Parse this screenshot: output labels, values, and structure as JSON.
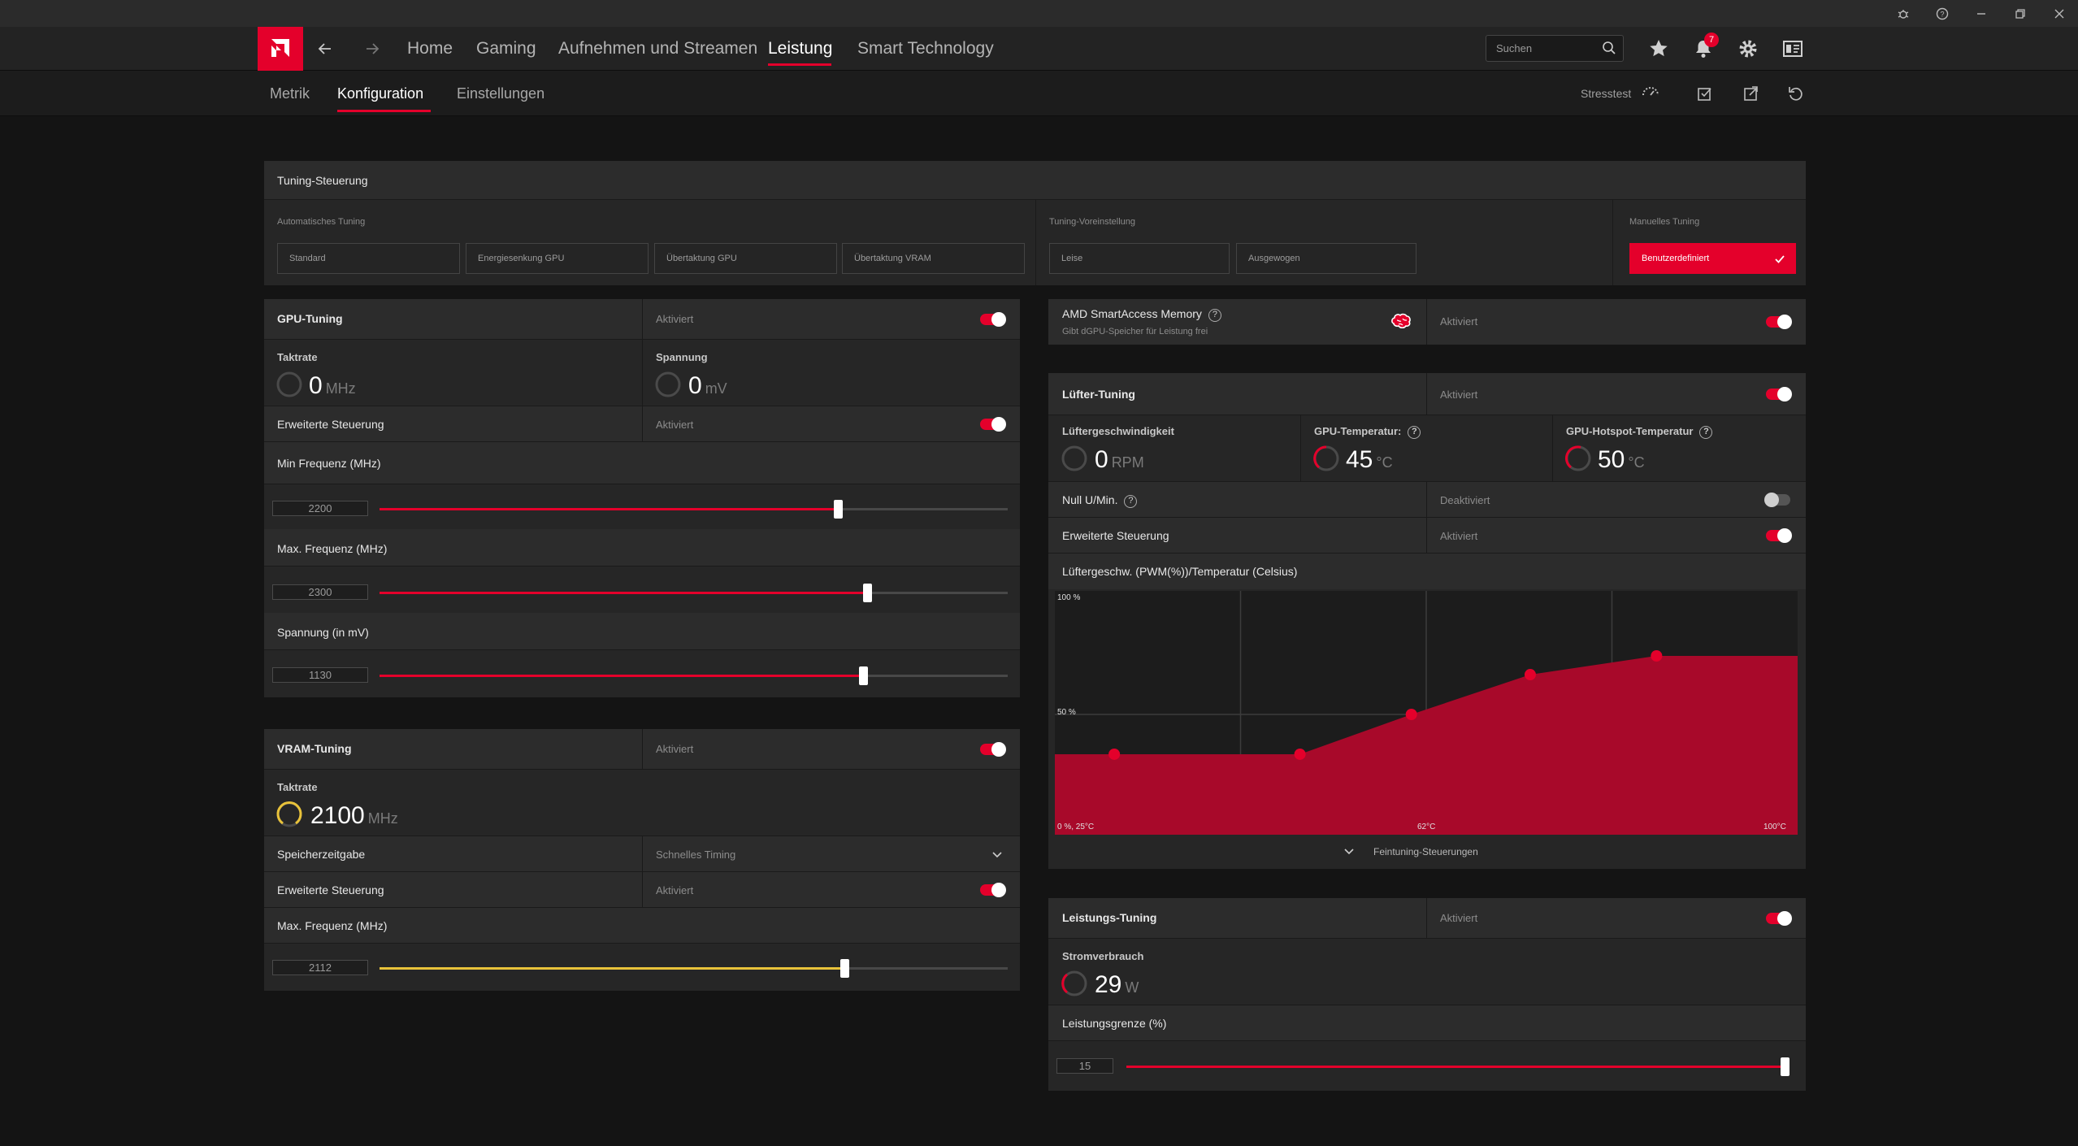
{
  "colors": {
    "accent": "#e4002b",
    "vram_accent": "#e8c23a",
    "gpu_temp_ring": "#e4002b"
  },
  "nav": {
    "items": [
      {
        "label": "Home"
      },
      {
        "label": "Gaming"
      },
      {
        "label": "Aufnehmen und Streamen"
      },
      {
        "label": "Leistung"
      },
      {
        "label": "Smart Technology"
      }
    ],
    "active": "Leistung",
    "search_placeholder": "Suchen",
    "notification_count": "7"
  },
  "subnav": {
    "items": [
      {
        "label": "Metrik"
      },
      {
        "label": "Konfiguration"
      },
      {
        "label": "Einstellungen"
      }
    ],
    "active": "Konfiguration",
    "stress_label": "Stresstest"
  },
  "tuning_control": {
    "title": "Tuning-Steuerung",
    "auto": {
      "label": "Automatisches Tuning",
      "options": [
        "Standard",
        "Energiesenkung GPU",
        "Übertaktung GPU",
        "Übertaktung VRAM"
      ]
    },
    "preset": {
      "label": "Tuning-Voreinstellung",
      "options": [
        "Leise",
        "Ausgewogen"
      ]
    },
    "manual": {
      "label": "Manuelles Tuning",
      "option": "Benutzerdefiniert"
    }
  },
  "gpu_tuning": {
    "title": "GPU-Tuning",
    "status": "Aktiviert",
    "enabled": true,
    "clock": {
      "label": "Taktrate",
      "value": "0",
      "unit": "MHz"
    },
    "voltage": {
      "label": "Spannung",
      "value": "0",
      "unit": "mV"
    },
    "advanced": {
      "label": "Erweiterte Steuerung",
      "status": "Aktiviert",
      "enabled": true
    },
    "sliders": [
      {
        "label": "Min Frequenz (MHz)",
        "value": "2200",
        "fraction": 0.73
      },
      {
        "label": "Max. Frequenz (MHz)",
        "value": "2300",
        "fraction": 0.776
      },
      {
        "label": "Spannung (in mV)",
        "value": "1130",
        "fraction": 0.77
      }
    ]
  },
  "vram_tuning": {
    "title": "VRAM-Tuning",
    "status": "Aktiviert",
    "enabled": true,
    "clock": {
      "label": "Taktrate",
      "value": "2100",
      "unit": "MHz"
    },
    "memory_timing": {
      "label": "Speicherzeitgabe",
      "value": "Schnelles Timing"
    },
    "advanced": {
      "label": "Erweiterte Steuerung",
      "status": "Aktiviert",
      "enabled": true
    },
    "slider": {
      "label": "Max. Frequenz (MHz)",
      "value": "2112",
      "fraction": 0.74
    }
  },
  "smart_access": {
    "title": "AMD SmartAccess Memory",
    "subtitle": "Gibt dGPU-Speicher für Leistung frei",
    "status": "Aktiviert",
    "enabled": true
  },
  "fan_tuning": {
    "title": "Lüfter-Tuning",
    "status": "Aktiviert",
    "enabled": true,
    "metrics": [
      {
        "label": "Lüftergeschwindigkeit",
        "value": "0",
        "unit": "RPM",
        "help": false
      },
      {
        "label": "GPU-Temperatur:",
        "value": "45",
        "unit": "°C",
        "help": true
      },
      {
        "label": "GPU-Hotspot-Temperatur",
        "value": "50",
        "unit": "°C",
        "help": true
      }
    ],
    "zero_rpm": {
      "label": "Null U/Min.",
      "status": "Deaktiviert",
      "enabled": false
    },
    "advanced": {
      "label": "Erweiterte Steuerung",
      "status": "Aktiviert",
      "enabled": true
    },
    "curve_label": "Lüftergeschw. (PWM(%))/Temperatur (Celsius)",
    "fine_tuning": "Feintuning-Steuerungen"
  },
  "chart_data": {
    "type": "area",
    "title": "Lüftergeschw. (PWM(%))/Temperatur (Celsius)",
    "x": [
      33,
      58,
      73,
      89,
      106
    ],
    "y": [
      33,
      33,
      50,
      67,
      75
    ],
    "xlim": [
      25,
      125
    ],
    "ylim": [
      0,
      100
    ],
    "axis_labels": {
      "y_top": "100 %",
      "y_mid": "50 %",
      "origin": "0 %, 25°C",
      "x_mid": "62°C",
      "x_max": "100°C"
    },
    "grid": true
  },
  "power_tuning": {
    "title": "Leistungs-Tuning",
    "status": "Aktiviert",
    "enabled": true,
    "consumption": {
      "label": "Stromverbrauch",
      "value": "29",
      "unit": "W"
    },
    "limit": {
      "label": "Leistungsgrenze (%)",
      "value": "15",
      "fraction": 1.0
    }
  }
}
